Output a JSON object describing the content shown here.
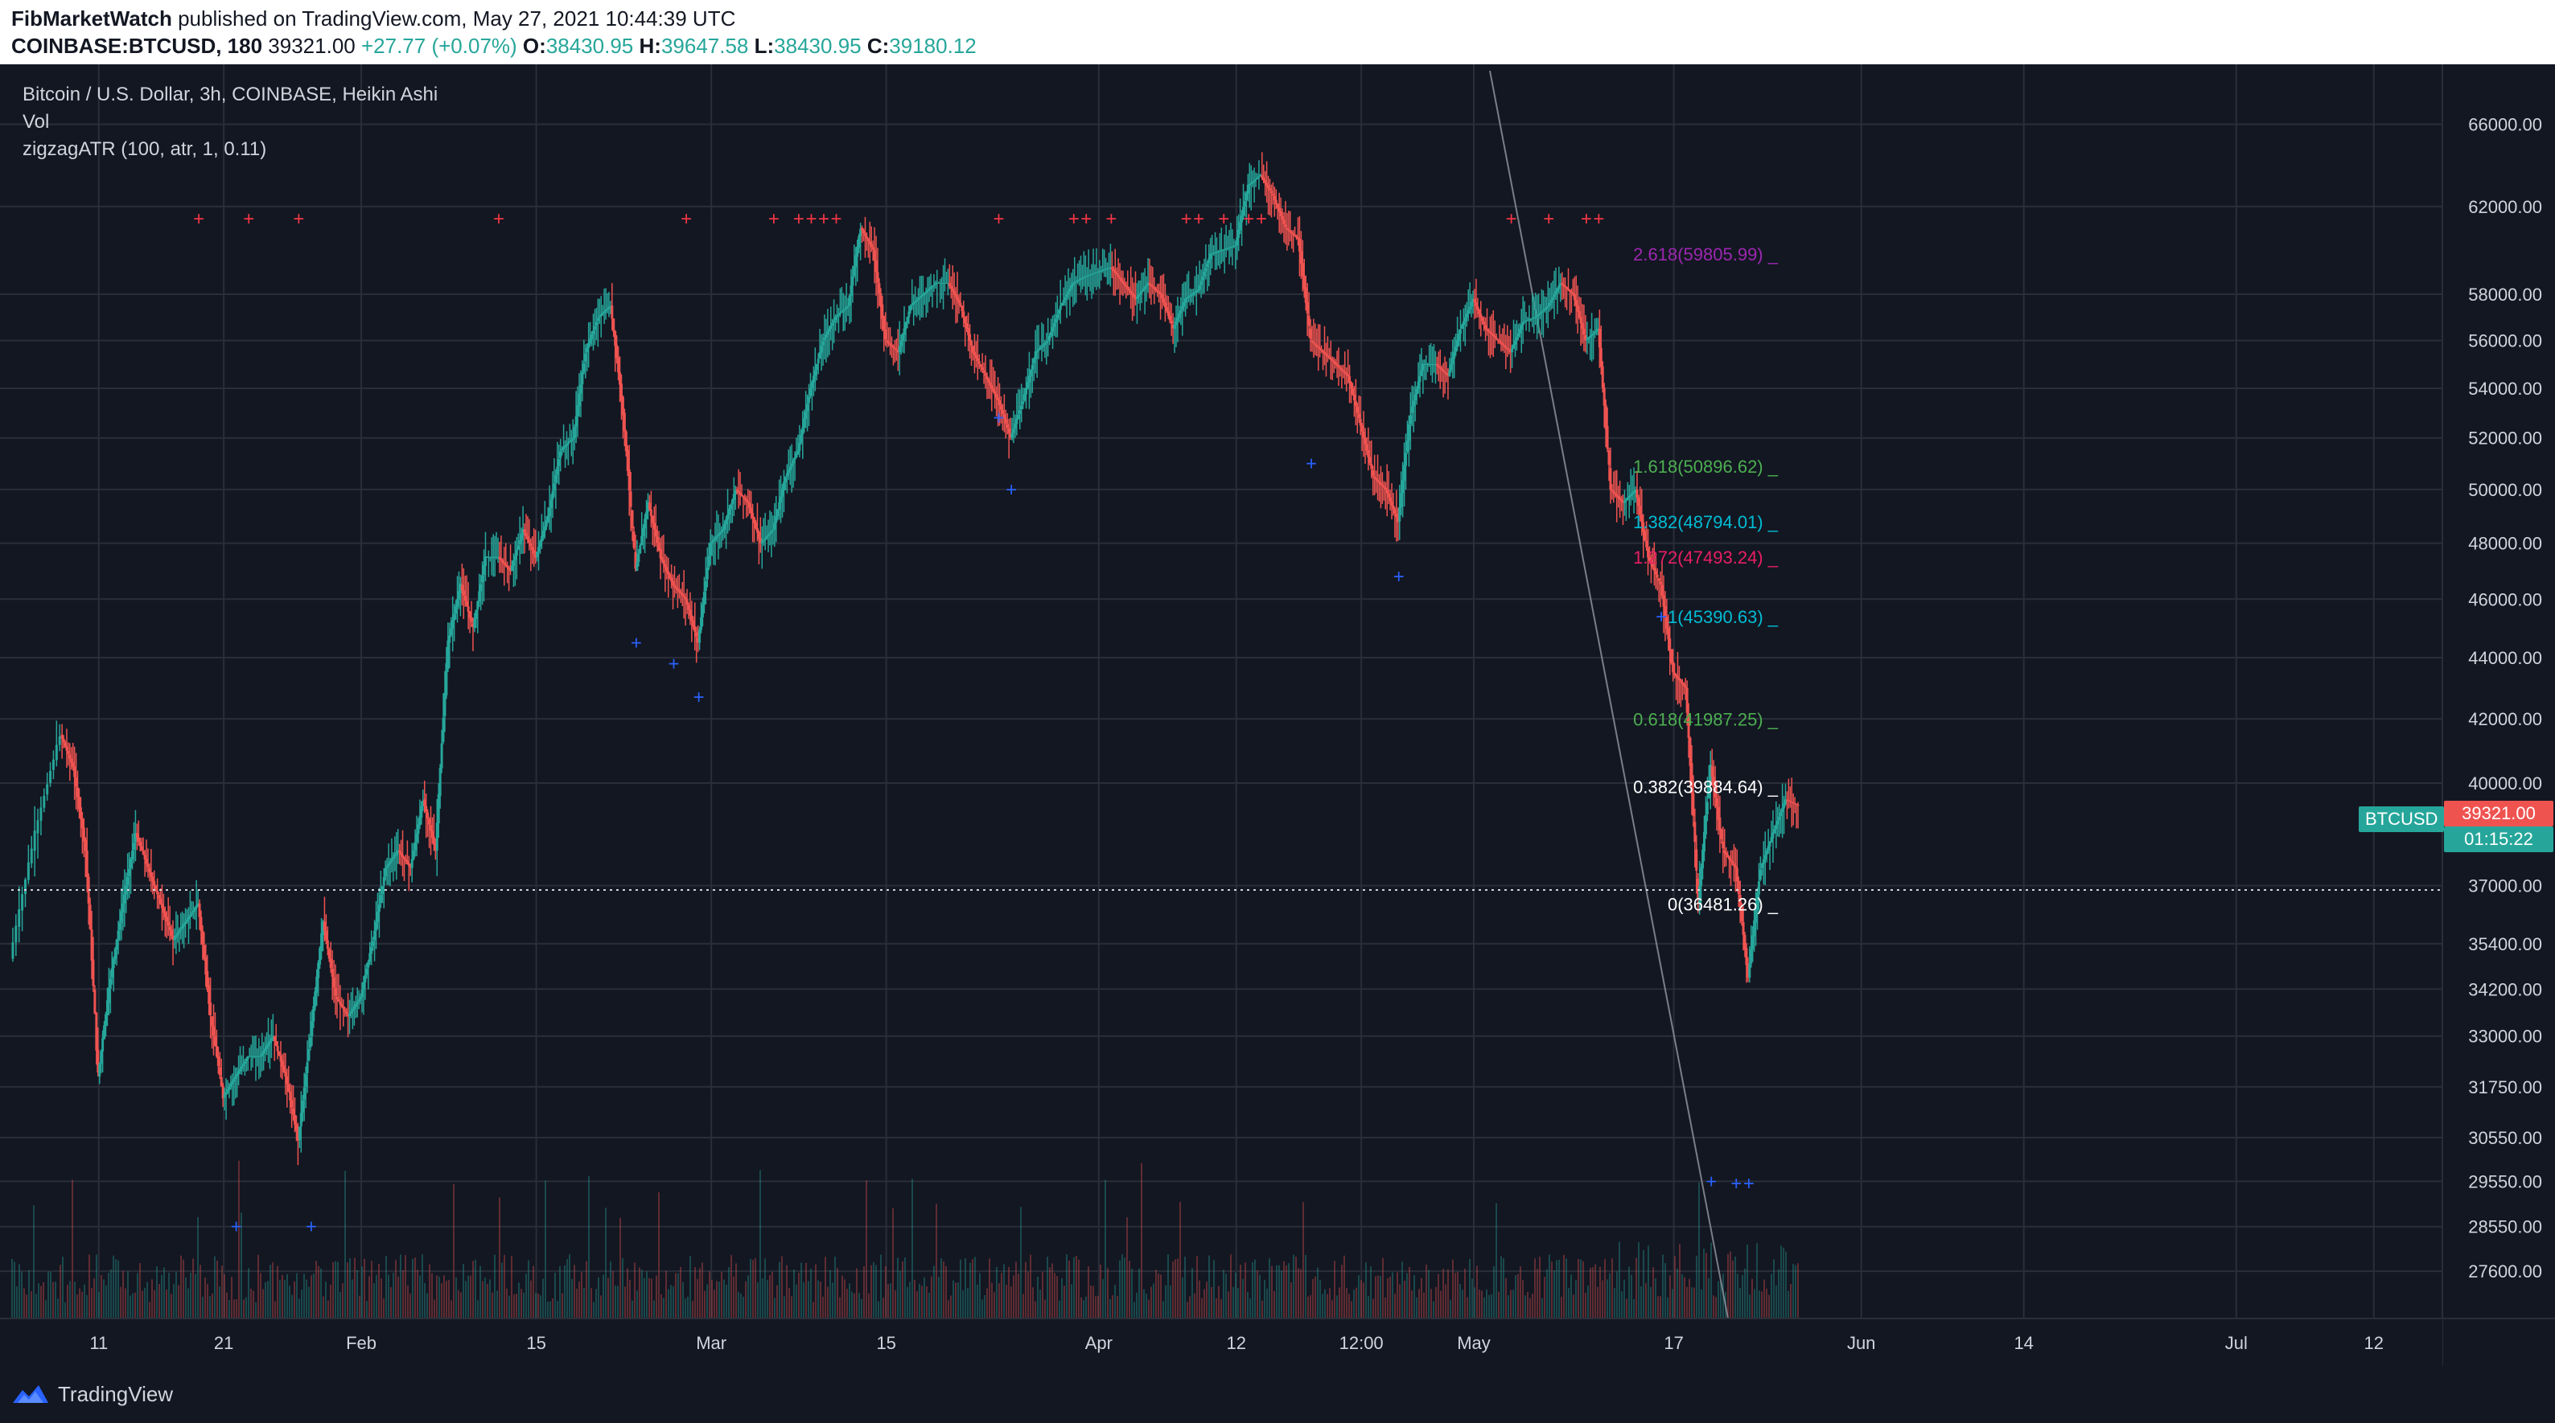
{
  "header": {
    "publisher": "FibMarketWatch",
    "published_text": "published on TradingView.com, May 27, 2021 10:44:39 UTC",
    "symbol": "COINBASE:BTCUSD, 180",
    "last": "39321.00",
    "change": "+27.77 (+0.07%)",
    "o_label": "O:",
    "o_value": "38430.95",
    "h_label": "H:",
    "h_value": "39647.58",
    "l_label": "L:",
    "l_value": "38430.95",
    "c_label": "C:",
    "c_value": "39180.12"
  },
  "legend": {
    "title": "Bitcoin / U.S. Dollar, 3h, COINBASE, Heikin Ashi",
    "vol": "Vol",
    "indicator": "zigzagATR (100, atr, 1, 0.11)"
  },
  "price_axis": {
    "ticks": [
      "66000.00",
      "62000.00",
      "58000.00",
      "56000.00",
      "54000.00",
      "52000.00",
      "50000.00",
      "48000.00",
      "46000.00",
      "44000.00",
      "42000.00",
      "40000.00",
      "37000.00",
      "35400.00",
      "34200.00",
      "33000.00",
      "31750.00",
      "30550.00",
      "29550.00",
      "28550.00",
      "27600.00"
    ],
    "ticker_label": "BTCUSD",
    "last_price": "39321.00",
    "countdown": "01:15:22"
  },
  "time_axis": {
    "ticks": [
      "11",
      "21",
      "Feb",
      "15",
      "Mar",
      "15",
      "Apr",
      "12",
      "12:00",
      "May",
      "17",
      "Jun",
      "14",
      "Jul",
      "12"
    ]
  },
  "fib_levels": [
    {
      "label": "2.618(59805.99)",
      "price": 59805.99,
      "color": "#9c27b0"
    },
    {
      "label": "1.618(50896.62)",
      "price": 50896.62,
      "color": "#4caf50"
    },
    {
      "label": "1.382(48794.01)",
      "price": 48794.01,
      "color": "#00bcd4"
    },
    {
      "label": "1.272(47493.24)",
      "price": 47493.24,
      "color": "#e91e63"
    },
    {
      "label": "1(45390.63)",
      "price": 45390.63,
      "color": "#00bcd4"
    },
    {
      "label": "0.618(41987.25)",
      "price": 41987.25,
      "color": "#4caf50"
    },
    {
      "label": "0.382(39884.64)",
      "price": 39884.64,
      "color": "#ffffff"
    },
    {
      "label": "0(36481.26)",
      "price": 36481.26,
      "color": "#ffffff"
    }
  ],
  "colors": {
    "background": "#131722",
    "grid": "#2a2e39",
    "up": "#26a69a",
    "down": "#ef5350",
    "marker_top": "#f23645",
    "marker_bottom": "#2962ff"
  },
  "chart_data": {
    "type": "candlestick",
    "title": "Bitcoin / U.S. Dollar, 3h, COINBASE, Heikin Ashi",
    "x_start": "2021-01-04",
    "x_end": "2021-05-27",
    "ylim": [
      27200,
      67000
    ],
    "y_scale": "log",
    "series": [
      {
        "name": "BTCUSD",
        "points": [
          [
            "2021-01-04",
            35000
          ],
          [
            "2021-01-06",
            38500
          ],
          [
            "2021-01-08",
            41500
          ],
          [
            "2021-01-09",
            40500
          ],
          [
            "2021-01-10",
            38000
          ],
          [
            "2021-01-11",
            32000
          ],
          [
            "2021-01-12",
            34500
          ],
          [
            "2021-01-13",
            36500
          ],
          [
            "2021-01-14",
            38500
          ],
          [
            "2021-01-15",
            37500
          ],
          [
            "2021-01-16",
            36500
          ],
          [
            "2021-01-17",
            35500
          ],
          [
            "2021-01-18",
            36000
          ],
          [
            "2021-01-19",
            36500
          ],
          [
            "2021-01-20",
            33500
          ],
          [
            "2021-01-21",
            31500
          ],
          [
            "2021-01-22",
            32000
          ],
          [
            "2021-01-23",
            32500
          ],
          [
            "2021-01-24",
            32500
          ],
          [
            "2021-01-25",
            33000
          ],
          [
            "2021-01-26",
            32000
          ],
          [
            "2021-01-27",
            30500
          ],
          [
            "2021-01-28",
            33000
          ],
          [
            "2021-01-29",
            36000
          ],
          [
            "2021-01-30",
            34000
          ],
          [
            "2021-01-31",
            33500
          ],
          [
            "2021-02-01",
            34000
          ],
          [
            "2021-02-02",
            35500
          ],
          [
            "2021-02-03",
            37500
          ],
          [
            "2021-02-04",
            38000
          ],
          [
            "2021-02-05",
            37500
          ],
          [
            "2021-02-06",
            39500
          ],
          [
            "2021-02-07",
            38000
          ],
          [
            "2021-02-08",
            44500
          ],
          [
            "2021-02-09",
            46500
          ],
          [
            "2021-02-10",
            45000
          ],
          [
            "2021-02-11",
            47500
          ],
          [
            "2021-02-12",
            47500
          ],
          [
            "2021-02-13",
            47000
          ],
          [
            "2021-02-14",
            48500
          ],
          [
            "2021-02-15",
            47500
          ],
          [
            "2021-02-16",
            49000
          ],
          [
            "2021-02-17",
            51500
          ],
          [
            "2021-02-18",
            52000
          ],
          [
            "2021-02-19",
            55500
          ],
          [
            "2021-02-20",
            57000
          ],
          [
            "2021-02-21",
            57500
          ],
          [
            "2021-02-22",
            53000
          ],
          [
            "2021-02-23",
            47000
          ],
          [
            "2021-02-24",
            49500
          ],
          [
            "2021-02-25",
            47500
          ],
          [
            "2021-02-26",
            46500
          ],
          [
            "2021-02-27",
            46000
          ],
          [
            "2021-02-28",
            44500
          ],
          [
            "2021-03-01",
            48000
          ],
          [
            "2021-03-02",
            48500
          ],
          [
            "2021-03-03",
            50000
          ],
          [
            "2021-03-04",
            49500
          ],
          [
            "2021-03-05",
            48000
          ],
          [
            "2021-03-06",
            48500
          ],
          [
            "2021-03-07",
            50500
          ],
          [
            "2021-03-08",
            51500
          ],
          [
            "2021-03-09",
            54000
          ],
          [
            "2021-03-10",
            56000
          ],
          [
            "2021-03-11",
            57000
          ],
          [
            "2021-03-12",
            57500
          ],
          [
            "2021-03-13",
            61000
          ],
          [
            "2021-03-14",
            60000
          ],
          [
            "2021-03-15",
            56000
          ],
          [
            "2021-03-16",
            55500
          ],
          [
            "2021-03-17",
            57500
          ],
          [
            "2021-03-18",
            58000
          ],
          [
            "2021-03-19",
            58500
          ],
          [
            "2021-03-20",
            58500
          ],
          [
            "2021-03-21",
            57500
          ],
          [
            "2021-03-22",
            55500
          ],
          [
            "2021-03-23",
            54500
          ],
          [
            "2021-03-24",
            53500
          ],
          [
            "2021-03-25",
            52000
          ],
          [
            "2021-03-26",
            53500
          ],
          [
            "2021-03-27",
            55500
          ],
          [
            "2021-03-28",
            56000
          ],
          [
            "2021-03-29",
            57500
          ],
          [
            "2021-03-30",
            58500
          ],
          [
            "2021-03-31",
            58800
          ],
          [
            "2021-04-01",
            59000
          ],
          [
            "2021-04-02",
            59200
          ],
          [
            "2021-04-03",
            58500
          ],
          [
            "2021-04-04",
            57800
          ],
          [
            "2021-04-05",
            58500
          ],
          [
            "2021-04-06",
            58000
          ],
          [
            "2021-04-07",
            56500
          ],
          [
            "2021-04-08",
            57800
          ],
          [
            "2021-04-09",
            58200
          ],
          [
            "2021-04-10",
            59800
          ],
          [
            "2021-04-11",
            60000
          ],
          [
            "2021-04-12",
            60200
          ],
          [
            "2021-04-13",
            63000
          ],
          [
            "2021-04-14",
            63500
          ],
          [
            "2021-04-15",
            62500
          ],
          [
            "2021-04-16",
            61000
          ],
          [
            "2021-04-17",
            60500
          ],
          [
            "2021-04-18",
            56000
          ],
          [
            "2021-04-19",
            55500
          ],
          [
            "2021-04-20",
            55000
          ],
          [
            "2021-04-21",
            54500
          ],
          [
            "2021-04-22",
            52500
          ],
          [
            "2021-04-23",
            50500
          ],
          [
            "2021-04-24",
            50000
          ],
          [
            "2021-04-25",
            48800
          ],
          [
            "2021-04-26",
            53000
          ],
          [
            "2021-04-27",
            55000
          ],
          [
            "2021-04-28",
            55000
          ],
          [
            "2021-04-29",
            54500
          ],
          [
            "2021-04-30",
            56500
          ],
          [
            "2021-05-01",
            57800
          ],
          [
            "2021-05-02",
            56500
          ],
          [
            "2021-05-03",
            56000
          ],
          [
            "2021-05-04",
            55500
          ],
          [
            "2021-05-05",
            56800
          ],
          [
            "2021-05-06",
            57000
          ],
          [
            "2021-05-07",
            57500
          ],
          [
            "2021-05-08",
            58500
          ],
          [
            "2021-05-09",
            58000
          ],
          [
            "2021-05-10",
            56000
          ],
          [
            "2021-05-11",
            56500
          ],
          [
            "2021-05-12",
            50000
          ],
          [
            "2021-05-13",
            49500
          ],
          [
            "2021-05-14",
            50000
          ],
          [
            "2021-05-15",
            47500
          ],
          [
            "2021-05-16",
            46500
          ],
          [
            "2021-05-17",
            43500
          ],
          [
            "2021-05-18",
            43000
          ],
          [
            "2021-05-19",
            36500
          ],
          [
            "2021-05-20",
            40500
          ],
          [
            "2021-05-21",
            38000
          ],
          [
            "2021-05-22",
            37500
          ],
          [
            "2021-05-23",
            34500
          ],
          [
            "2021-05-24",
            37500
          ],
          [
            "2021-05-25",
            38500
          ],
          [
            "2021-05-26",
            39500
          ],
          [
            "2021-05-27",
            39321
          ]
        ]
      }
    ]
  }
}
